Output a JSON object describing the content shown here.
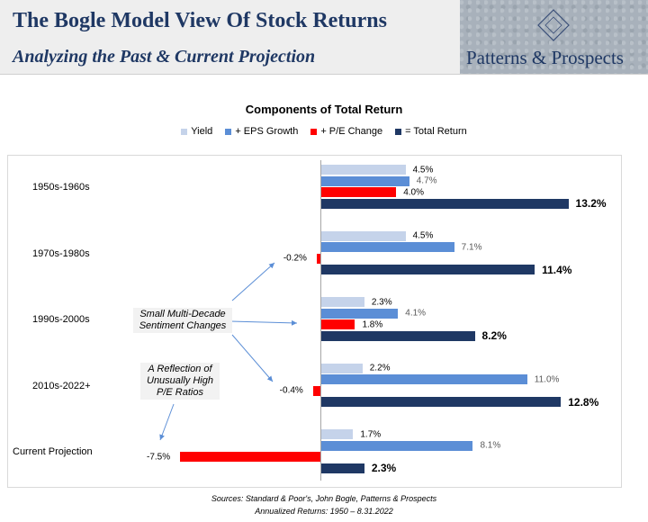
{
  "header": {
    "title": "The Bogle Model View Of Stock Returns",
    "subtitle": "Analyzing the Past & Current Projection",
    "logo_text": "Patterns & Prospects"
  },
  "colors": {
    "header_text": "#1f3864",
    "yield": "#c5d3ea",
    "eps_growth": "#5b8ed6",
    "pe_change": "#ff0000",
    "total_return": "#1f3864"
  },
  "chart_data": {
    "type": "bar",
    "orientation": "horizontal",
    "title": "Components of Total Return",
    "categories": [
      "1950s-1960s",
      "1970s-1980s",
      "1990s-2000s",
      "2010s-2022+",
      "Current Projection"
    ],
    "series": [
      {
        "name": "Yield",
        "values": [
          4.5,
          4.5,
          2.3,
          2.2,
          1.7
        ],
        "labels": [
          "4.5%",
          "4.5%",
          "2.3%",
          "2.2%",
          "1.7%"
        ]
      },
      {
        "name": "+ EPS Growth",
        "values": [
          4.7,
          7.1,
          4.1,
          11.0,
          8.1
        ],
        "labels": [
          "4.7%",
          "7.1%",
          "4.1%",
          "11.0%",
          "8.1%"
        ]
      },
      {
        "name": "+ P/E Change",
        "values": [
          4.0,
          -0.2,
          1.8,
          -0.4,
          -7.5
        ],
        "labels": [
          "4.0%",
          "-0.2%",
          "1.8%",
          "-0.4%",
          "-7.5%"
        ]
      },
      {
        "name": "= Total Return",
        "values": [
          13.2,
          11.4,
          8.2,
          12.8,
          2.3
        ],
        "labels": [
          "13.2%",
          "11.4%",
          "8.2%",
          "12.8%",
          "2.3%"
        ]
      }
    ],
    "xlim": [
      -7.5,
      14
    ],
    "grid": false,
    "legend_position": "top",
    "annotations": [
      {
        "id": "sentiment",
        "text": "Small Multi-Decade Sentiment Changes"
      },
      {
        "id": "pe",
        "text": "A Reflection of Unusually High P/E Ratios"
      }
    ]
  },
  "footer": {
    "sources": "Sources: Standard & Poor's, John Bogle, Patterns & Prospects",
    "annualized": "Annualized Returns: 1950 – 8.31.2022"
  }
}
